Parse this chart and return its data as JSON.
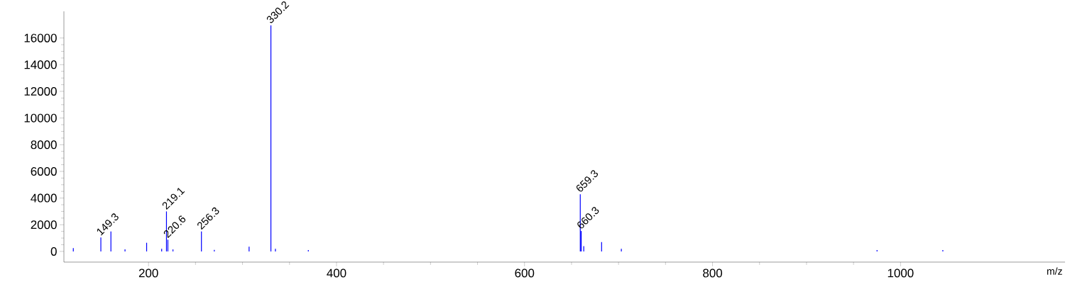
{
  "chart_data": {
    "type": "bar",
    "xlabel": "m/z",
    "x": [
      120,
      149.3,
      160,
      175,
      198,
      214,
      219.1,
      220.6,
      226,
      256.3,
      270,
      307,
      330.2,
      335,
      370,
      659.3,
      660.3,
      663,
      682,
      703,
      975,
      1045
    ],
    "values": [
      250,
      1050,
      1500,
      150,
      650,
      200,
      3000,
      880,
      150,
      1500,
      120,
      350,
      16950,
      200,
      100,
      4290,
      1530,
      400,
      700,
      200,
      100,
      100
    ],
    "color": "#0000ff",
    "xlim": [
      110,
      1175
    ],
    "xticks": [
      200,
      400,
      600,
      800,
      1000
    ],
    "ylim": [
      -800,
      18000
    ],
    "yticks": [
      0,
      2000,
      4000,
      6000,
      8000,
      10000,
      12000,
      14000,
      16000
    ],
    "annotations": [
      {
        "text": "149.3",
        "x": 149.3,
        "y": 1050
      },
      {
        "text": "219.1",
        "x": 219.1,
        "y": 3000
      },
      {
        "text": "220.6",
        "x": 220.6,
        "y": 880
      },
      {
        "text": "256.3",
        "x": 256.3,
        "y": 1500
      },
      {
        "text": "330.2",
        "x": 330.2,
        "y": 16950
      },
      {
        "text": "659.3",
        "x": 659.3,
        "y": 4290
      },
      {
        "text": "660.3",
        "x": 660.3,
        "y": 1530
      }
    ],
    "grid": false
  }
}
